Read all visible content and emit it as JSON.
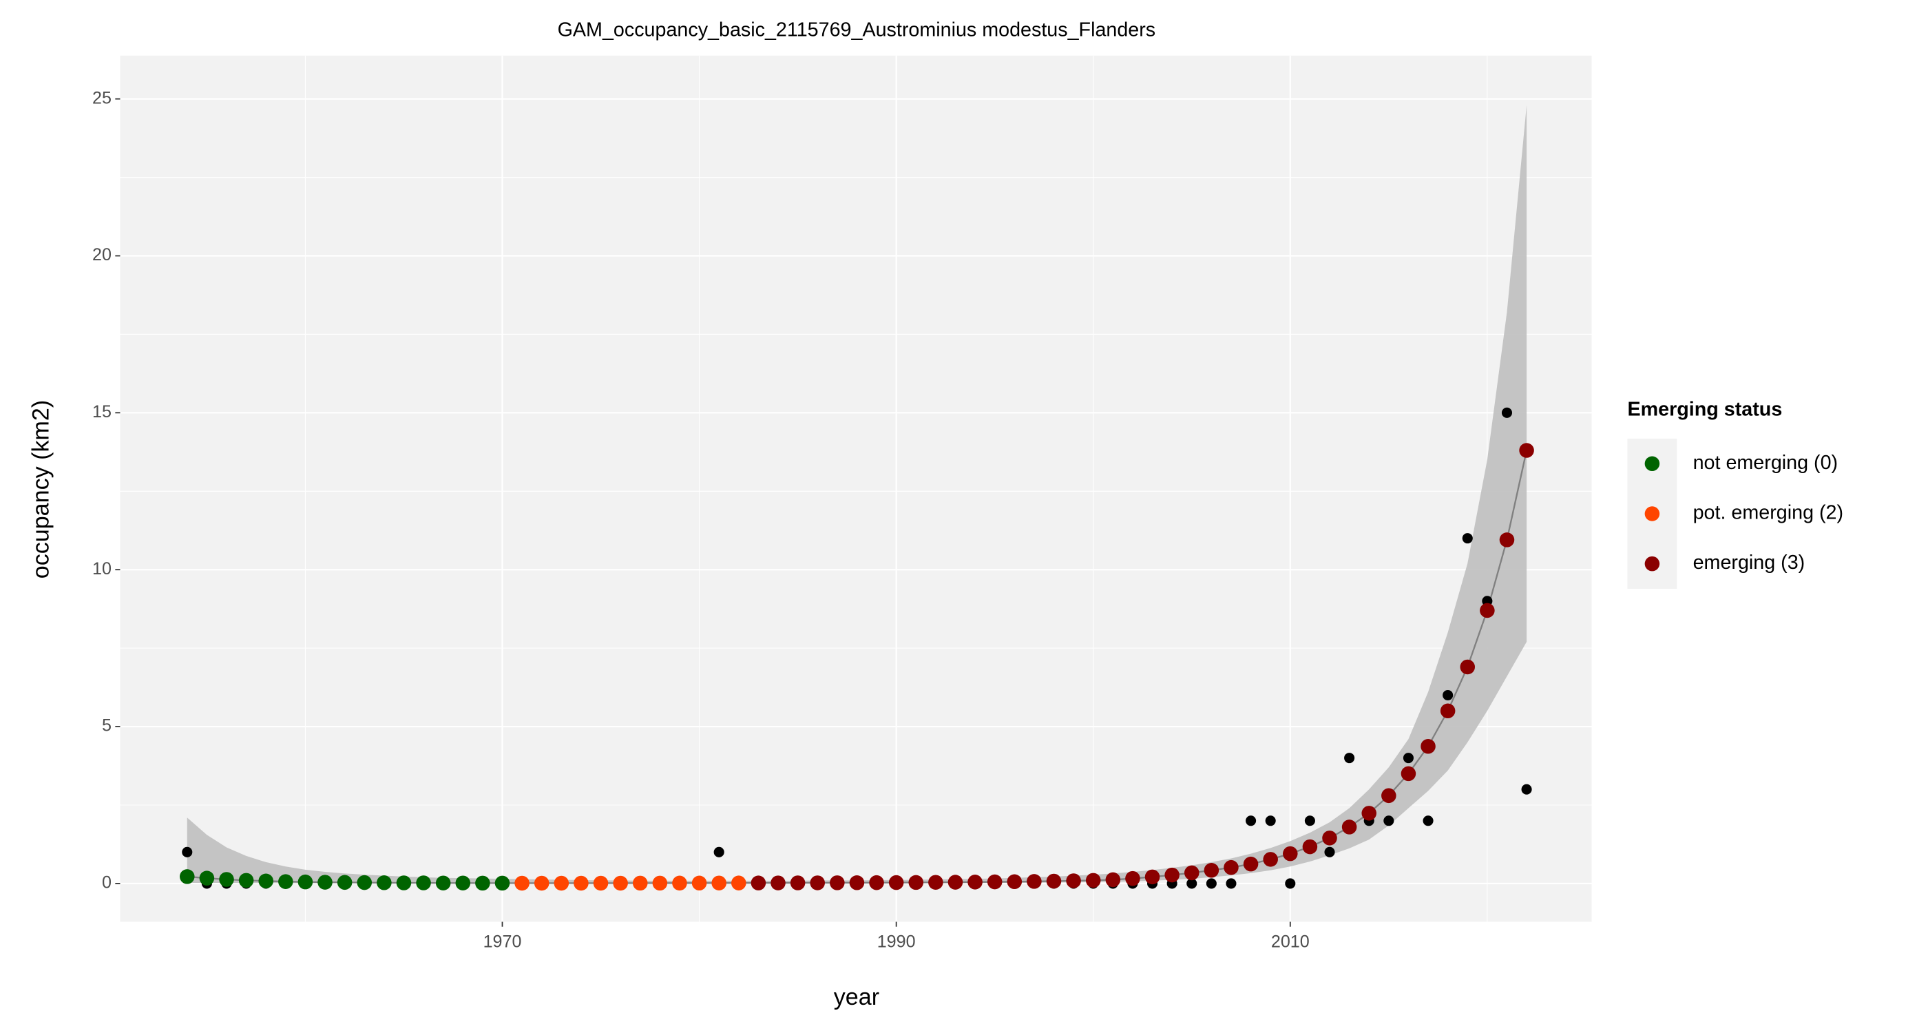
{
  "chart_data": {
    "type": "scatter",
    "title": "GAM_occupancy_basic_2115769_Austrominius modestus_Flanders",
    "xlabel": "year",
    "ylabel": "occupancy (km2)",
    "legend_title": "Emerging status",
    "legend_position": "right",
    "grid": true,
    "xlim": [
      1950.6,
      2025.3
    ],
    "ylim": [
      -1.22,
      26.38
    ],
    "xticks": [
      1970,
      1990,
      2010
    ],
    "yticks": [
      0,
      5,
      10,
      15,
      20,
      25
    ],
    "observed_color": "#000000",
    "band_color": "#bfbfbf",
    "line_color": "#808080",
    "x": [
      1954,
      1955,
      1956,
      1957,
      1958,
      1959,
      1960,
      1961,
      1962,
      1963,
      1964,
      1965,
      1966,
      1967,
      1968,
      1969,
      1970,
      1971,
      1972,
      1973,
      1974,
      1975,
      1976,
      1977,
      1978,
      1979,
      1980,
      1981,
      1982,
      1983,
      1984,
      1985,
      1986,
      1987,
      1988,
      1989,
      1990,
      1991,
      1992,
      1993,
      1994,
      1995,
      1996,
      1997,
      1998,
      1999,
      2000,
      2001,
      2002,
      2003,
      2004,
      2005,
      2006,
      2007,
      2008,
      2009,
      2010,
      2011,
      2012,
      2013,
      2014,
      2015,
      2016,
      2017,
      2018,
      2019,
      2020,
      2021,
      2022
    ],
    "observed": [
      1,
      0,
      0,
      0,
      0,
      0,
      0,
      0,
      0,
      0,
      0,
      0,
      0,
      0,
      0,
      0,
      0,
      0,
      0,
      0,
      0,
      0,
      0,
      0,
      0,
      0,
      0,
      1,
      0,
      0,
      0,
      0,
      0,
      0,
      0,
      0,
      0,
      0,
      0,
      0,
      0,
      0,
      0,
      0,
      0,
      0,
      0,
      0,
      0,
      0,
      0,
      0,
      0,
      0,
      2,
      2,
      0,
      2,
      1,
      4,
      2,
      2,
      4,
      2,
      6,
      11,
      9,
      15,
      3
    ],
    "fit_upper": [
      2.1,
      1.55,
      1.15,
      0.88,
      0.68,
      0.54,
      0.44,
      0.37,
      0.32,
      0.28,
      0.25,
      0.22,
      0.2,
      0.18,
      0.17,
      0.16,
      0.15,
      0.14,
      0.13,
      0.12,
      0.11,
      0.1,
      0.1,
      0.09,
      0.09,
      0.09,
      0.09,
      0.09,
      0.09,
      0.09,
      0.09,
      0.09,
      0.1,
      0.1,
      0.1,
      0.11,
      0.11,
      0.12,
      0.13,
      0.14,
      0.15,
      0.16,
      0.18,
      0.2,
      0.22,
      0.25,
      0.28,
      0.32,
      0.37,
      0.43,
      0.5,
      0.58,
      0.68,
      0.8,
      0.95,
      1.13,
      1.35,
      1.62,
      1.95,
      2.4,
      3.0,
      3.7,
      4.6,
      6.1,
      8.0,
      10.2,
      13.5,
      18.2,
      24.8
    ],
    "fit_lower": [
      0.02,
      0.02,
      0.02,
      0.015,
      0.015,
      0.01,
      0.01,
      0.01,
      0.01,
      0.005,
      0.005,
      0.005,
      0.005,
      0.005,
      0.003,
      0.003,
      0.003,
      0.002,
      0.002,
      0.002,
      0.002,
      0.002,
      0.002,
      0.002,
      0.002,
      0.002,
      0.002,
      0.002,
      0.002,
      0.003,
      0.003,
      0.003,
      0.004,
      0.004,
      0.005,
      0.006,
      0.007,
      0.008,
      0.01,
      0.012,
      0.014,
      0.017,
      0.02,
      0.024,
      0.03,
      0.036,
      0.045,
      0.05,
      0.07,
      0.09,
      0.12,
      0.15,
      0.2,
      0.26,
      0.33,
      0.42,
      0.54,
      0.7,
      0.9,
      1.12,
      1.4,
      1.85,
      2.4,
      2.95,
      3.6,
      4.5,
      5.5,
      6.6,
      7.7
    ],
    "series": [
      {
        "name": "not emerging (0)",
        "color": "#006400",
        "x": [
          1954,
          1955,
          1956,
          1957,
          1958,
          1959,
          1960,
          1961,
          1962,
          1963,
          1964,
          1965,
          1966,
          1967,
          1968,
          1969,
          1970
        ],
        "values": [
          0.22,
          0.17,
          0.13,
          0.1,
          0.08,
          0.06,
          0.05,
          0.04,
          0.035,
          0.03,
          0.025,
          0.02,
          0.02,
          0.015,
          0.015,
          0.012,
          0.012
        ]
      },
      {
        "name": "pot. emerging (2)",
        "color": "#ff4500",
        "x": [
          1971,
          1972,
          1973,
          1974,
          1975,
          1976,
          1977,
          1978,
          1979,
          1980,
          1981,
          1982
        ],
        "values": [
          0.01,
          0.01,
          0.01,
          0.01,
          0.01,
          0.01,
          0.012,
          0.012,
          0.013,
          0.014,
          0.015,
          0.016
        ]
      },
      {
        "name": "emerging (3)",
        "color": "#8b0000",
        "x": [
          1983,
          1984,
          1985,
          1986,
          1987,
          1988,
          1989,
          1990,
          1991,
          1992,
          1993,
          1994,
          1995,
          1996,
          1997,
          1998,
          1999,
          2000,
          2001,
          2002,
          2003,
          2004,
          2005,
          2006,
          2007,
          2008,
          2009,
          2010,
          2011,
          2012,
          2013,
          2014,
          2015,
          2016,
          2017,
          2018,
          2019,
          2020,
          2021,
          2022
        ],
        "values": [
          0.017,
          0.018,
          0.02,
          0.021,
          0.023,
          0.025,
          0.027,
          0.03,
          0.033,
          0.037,
          0.041,
          0.046,
          0.052,
          0.058,
          0.066,
          0.075,
          0.087,
          0.1,
          0.12,
          0.16,
          0.21,
          0.27,
          0.34,
          0.42,
          0.51,
          0.62,
          0.77,
          0.95,
          1.17,
          1.45,
          1.8,
          2.24,
          2.8,
          3.5,
          4.37,
          5.5,
          6.9,
          8.7,
          10.95,
          13.8
        ]
      }
    ]
  }
}
